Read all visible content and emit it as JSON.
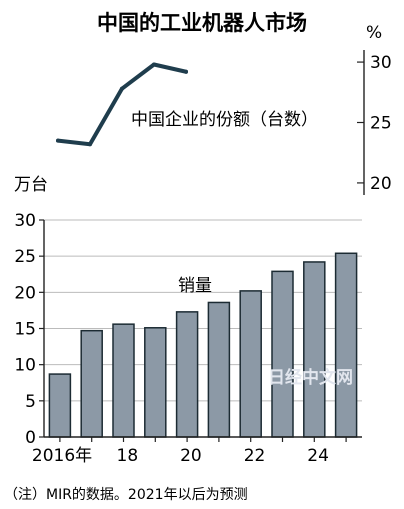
{
  "chart_data": [
    {
      "type": "line",
      "title": "中国的工业机器人市场",
      "ylabel": "%",
      "series": [
        {
          "name": "中国企业的份额（台数）",
          "x": [
            2016,
            2017,
            2018,
            2019,
            2020
          ],
          "values": [
            23.5,
            23.2,
            27.8,
            29.8,
            29.2
          ]
        }
      ],
      "ylim": [
        19,
        31
      ],
      "yticks": [
        "20",
        "25",
        "30"
      ],
      "color": "#1f3d4d",
      "axis_side": "right"
    },
    {
      "type": "bar",
      "ylabel": "万台",
      "series_label": "销量",
      "categories": [
        2016,
        2017,
        2018,
        2019,
        2020,
        2021,
        2022,
        2023,
        2024,
        2025
      ],
      "xtick_labels": [
        "2016年",
        "",
        "18",
        "",
        "20",
        "",
        "22",
        "",
        "24",
        ""
      ],
      "values": [
        8.7,
        14.7,
        15.6,
        15.1,
        17.3,
        18.6,
        20.2,
        22.9,
        24.2,
        25.4
      ],
      "ylim": [
        0,
        30
      ],
      "yticks": [
        "0",
        "5",
        "10",
        "15",
        "20",
        "25",
        "30"
      ],
      "grid": "horizontal",
      "bar_color": "#8c99a6",
      "bar_edge": "#1c2b33"
    }
  ],
  "footnote": "（注）MIR的数据。2021年以后为预测",
  "watermark": "日经中文网"
}
